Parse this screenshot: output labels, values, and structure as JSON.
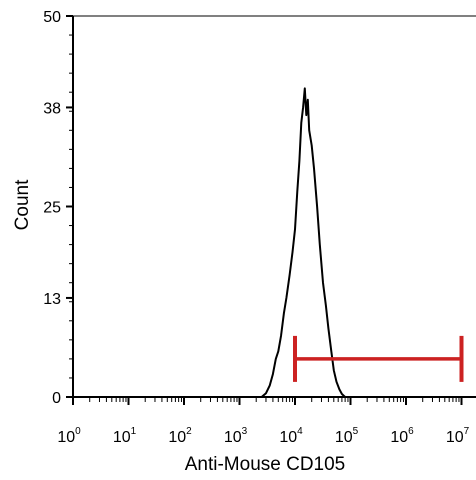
{
  "chart_data": {
    "type": "histogram",
    "xlabel": "Anti-Mouse CD105",
    "ylabel": "Count",
    "xscale": "log",
    "xlim": [
      1,
      10000000
    ],
    "ylim": [
      0,
      50
    ],
    "x_ticks": [
      {
        "base": "10",
        "exp": "0"
      },
      {
        "base": "10",
        "exp": "1"
      },
      {
        "base": "10",
        "exp": "2"
      },
      {
        "base": "10",
        "exp": "3"
      },
      {
        "base": "10",
        "exp": "4"
      },
      {
        "base": "10",
        "exp": "5"
      },
      {
        "base": "10",
        "exp": "6"
      },
      {
        "base": "10",
        "exp": "7"
      }
    ],
    "y_ticks": [
      "50",
      "38",
      "25",
      "13",
      "0"
    ],
    "y_tick_values": [
      50,
      38,
      25,
      13,
      0
    ],
    "series": [
      {
        "color": "#000000",
        "points": [
          [
            2500,
            0
          ],
          [
            3000,
            0.5
          ],
          [
            3500,
            1.5
          ],
          [
            4000,
            3
          ],
          [
            4500,
            5
          ],
          [
            5000,
            6
          ],
          [
            5600,
            8
          ],
          [
            6300,
            11
          ],
          [
            7000,
            13
          ],
          [
            8000,
            16
          ],
          [
            9000,
            19
          ],
          [
            10000,
            22
          ],
          [
            11000,
            27
          ],
          [
            12000,
            31
          ],
          [
            13000,
            36
          ],
          [
            14000,
            38
          ],
          [
            15000,
            40.5
          ],
          [
            16000,
            37
          ],
          [
            17000,
            39
          ],
          [
            18000,
            35
          ],
          [
            20000,
            33
          ],
          [
            22000,
            30
          ],
          [
            25000,
            25
          ],
          [
            28000,
            20
          ],
          [
            32000,
            15
          ],
          [
            36000,
            12
          ],
          [
            40000,
            9
          ],
          [
            45000,
            6
          ],
          [
            50000,
            3.5
          ],
          [
            56000,
            2
          ],
          [
            63000,
            1
          ],
          [
            70000,
            0.4
          ],
          [
            80000,
            0
          ]
        ]
      }
    ],
    "gate": {
      "color": "#cc2222",
      "x_start": 10000,
      "x_end": 10000000,
      "y": 5
    }
  }
}
